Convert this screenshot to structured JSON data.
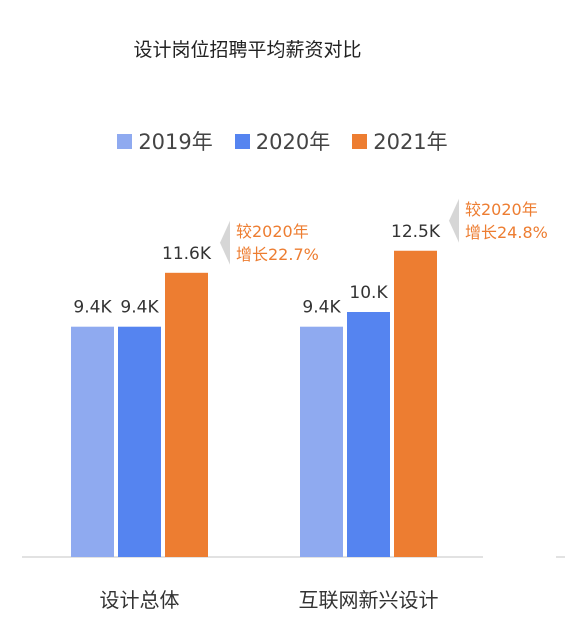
{
  "chart_data": {
    "type": "bar",
    "title": "设计岗位招聘平均薪资对比",
    "categories": [
      "设计总体",
      "互联网新兴设计"
    ],
    "series": [
      {
        "name": "2019年",
        "values": [
          9.4,
          9.4
        ],
        "labels": [
          "9.4K",
          "9.4K"
        ],
        "color": "#8FAAF0"
      },
      {
        "name": "2020年",
        "values": [
          9.4,
          10.0
        ],
        "labels": [
          "9.4K",
          "10.K"
        ],
        "color": "#5584F0"
      },
      {
        "name": "2021年",
        "values": [
          11.6,
          12.5
        ],
        "labels": [
          "11.6K",
          "12.5K"
        ],
        "color": "#ED7D31"
      }
    ],
    "annotations": [
      {
        "category": "设计总体",
        "line1": "较2020年",
        "line2": "增长22.7%"
      },
      {
        "category": "互联网新兴设计",
        "line1": "较2020年",
        "line2": "增长24.8%"
      }
    ],
    "ylim": [
      0,
      13.5
    ],
    "grid": false,
    "legend_position": "top"
  }
}
